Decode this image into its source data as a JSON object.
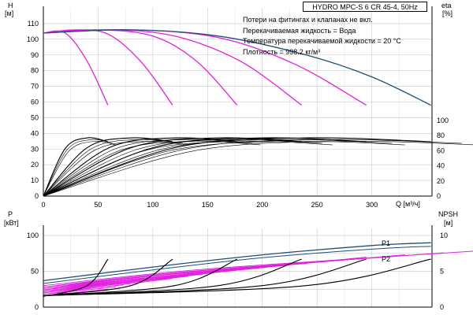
{
  "title": "HYDRO MPC-S 6 CR 45-4, 50Hz",
  "notes": [
    "Потери на фитингах и клапанах не вкл.",
    "Перекачиваемая жидкость = Вода",
    "Температура перекачиваемой жидкости = 20 °C",
    "Плотность = 998.2 кг/м³"
  ],
  "colors": {
    "magenta": "#e020e0",
    "navy": "#1f4e79",
    "black": "#000000",
    "grid": "#c8c8c8"
  },
  "chart_data": [
    {
      "type": "line",
      "name_top": "head",
      "ylabel_left": [
        "H",
        "[м]"
      ],
      "ylabel_right": [
        "eta",
        "[%]"
      ],
      "xlabel": "Q [м³/ч]",
      "xlim": [
        0,
        355
      ],
      "ylim_left": [
        0,
        120
      ],
      "ylim_right": [
        0,
        100
      ],
      "x_ticks": [
        0,
        50,
        100,
        150,
        200,
        250,
        300
      ],
      "y_ticks_left": [
        0,
        10,
        20,
        30,
        40,
        50,
        60,
        70,
        80,
        90,
        100,
        110
      ],
      "y_ticks_right": [
        0,
        20,
        40,
        60,
        80,
        100
      ],
      "head_curves_pink": [
        {
          "x": [
            0,
            20,
            40,
            59
          ],
          "y": [
            104,
            104,
            86,
            58
          ]
        },
        {
          "x": [
            0,
            30,
            60,
            90,
            118
          ],
          "y": [
            104,
            106,
            103,
            85,
            58
          ]
        },
        {
          "x": [
            0,
            50,
            100,
            140,
            177
          ],
          "y": [
            104,
            106,
            102,
            86,
            58
          ]
        },
        {
          "x": [
            0,
            60,
            120,
            180,
            236
          ],
          "y": [
            104,
            106,
            102,
            86,
            58
          ]
        },
        {
          "x": [
            0,
            80,
            160,
            230,
            295
          ],
          "y": [
            104,
            106,
            101,
            84,
            58
          ]
        }
      ],
      "head_curve_max": {
        "x": [
          0,
          80,
          160,
          240,
          300,
          354
        ],
        "y": [
          104,
          106,
          102,
          90,
          76,
          58
        ]
      },
      "eff_curves": [
        {
          "x": [
            0,
            20,
            40,
            59
          ],
          "y": [
            0,
            63,
            77,
            72
          ]
        },
        {
          "x": [
            0,
            40,
            80,
            118
          ],
          "y": [
            0,
            64,
            77,
            72
          ]
        },
        {
          "x": [
            0,
            60,
            120,
            177
          ],
          "y": [
            0,
            64,
            77,
            72
          ]
        },
        {
          "x": [
            0,
            80,
            160,
            236
          ],
          "y": [
            0,
            64,
            77,
            72
          ]
        },
        {
          "x": [
            0,
            100,
            200,
            295
          ],
          "y": [
            0,
            64,
            77,
            72
          ]
        },
        {
          "x": [
            0,
            120,
            240,
            354
          ],
          "y": [
            0,
            64,
            77,
            72
          ]
        }
      ]
    },
    {
      "type": "line",
      "ylabel_left": [
        "P",
        "[кВт]"
      ],
      "ylabel_right": [
        "NPSH",
        "[м]"
      ],
      "ylim_left": [
        0,
        110
      ],
      "ylim_right": [
        0,
        11
      ],
      "y_ticks_left": [
        0,
        50,
        100
      ],
      "y_ticks_right": [
        0,
        5,
        10
      ],
      "series_labels": [
        "P1",
        "P2"
      ],
      "p1": {
        "x": [
          0,
          100,
          200,
          300,
          354
        ],
        "y": [
          37,
          56,
          73,
          86,
          90
        ]
      },
      "p2": {
        "x": [
          0,
          100,
          200,
          300,
          354
        ],
        "y": [
          33,
          52,
          69,
          81,
          85
        ]
      },
      "npsh_curves": [
        {
          "x": [
            0,
            40,
            59
          ],
          "y": [
            1.5,
            3,
            6.7
          ]
        },
        {
          "x": [
            0,
            80,
            118
          ],
          "y": [
            1.6,
            3,
            6.7
          ]
        },
        {
          "x": [
            0,
            120,
            177
          ],
          "y": [
            1.6,
            3,
            6.7
          ]
        },
        {
          "x": [
            0,
            160,
            236
          ],
          "y": [
            1.6,
            3,
            6.7
          ]
        },
        {
          "x": [
            0,
            200,
            295
          ],
          "y": [
            1.6,
            3,
            6.7
          ]
        },
        {
          "x": [
            0,
            240,
            354
          ],
          "y": [
            1.6,
            3,
            6.7
          ]
        }
      ]
    }
  ]
}
